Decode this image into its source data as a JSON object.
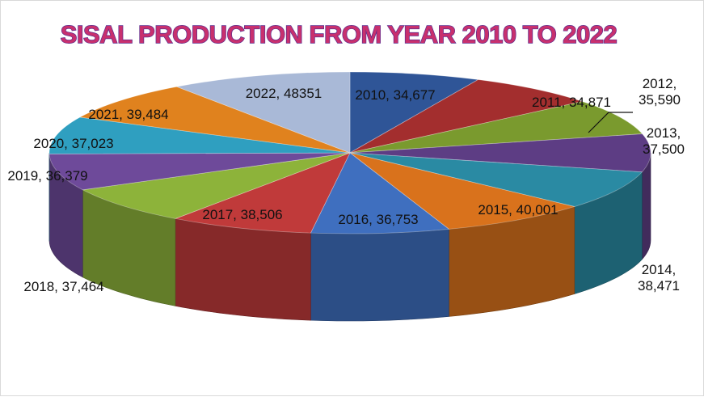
{
  "chart_data": {
    "type": "pie",
    "style": "3d-exploded-none",
    "title": "SISAL PRODUCTION FROM YEAR 2010 TO 2022",
    "categories": [
      "2010",
      "2011",
      "2012",
      "2013",
      "2014",
      "2015",
      "2016",
      "2017",
      "2018",
      "2019",
      "2020",
      "2021",
      "2022"
    ],
    "values": [
      34677,
      34871,
      35590,
      37500,
      38471,
      40001,
      36753,
      38506,
      37464,
      36379,
      37023,
      39484,
      48351
    ],
    "data_labels": [
      "2010, 34,677",
      "2011, 34,871",
      "2012,\n35,590",
      "2013,\n37,500",
      "2014,\n38,471",
      "2015, 40,001",
      "2016, 36,753",
      "2017, 38,506",
      "2018, 37,464",
      "2019, 36,379",
      "2020, 37,023",
      "2021, 39,484",
      "2022, 48351"
    ],
    "colors": [
      "#2f5597",
      "#a32e2e",
      "#7a9a2e",
      "#5d3d84",
      "#2a8aa3",
      "#d9721c",
      "#3f6fbf",
      "#c03a3a",
      "#8db33a",
      "#6e4a9a",
      "#2f9fc0",
      "#e0821e",
      "#a9b9d7"
    ],
    "legend": "none"
  }
}
